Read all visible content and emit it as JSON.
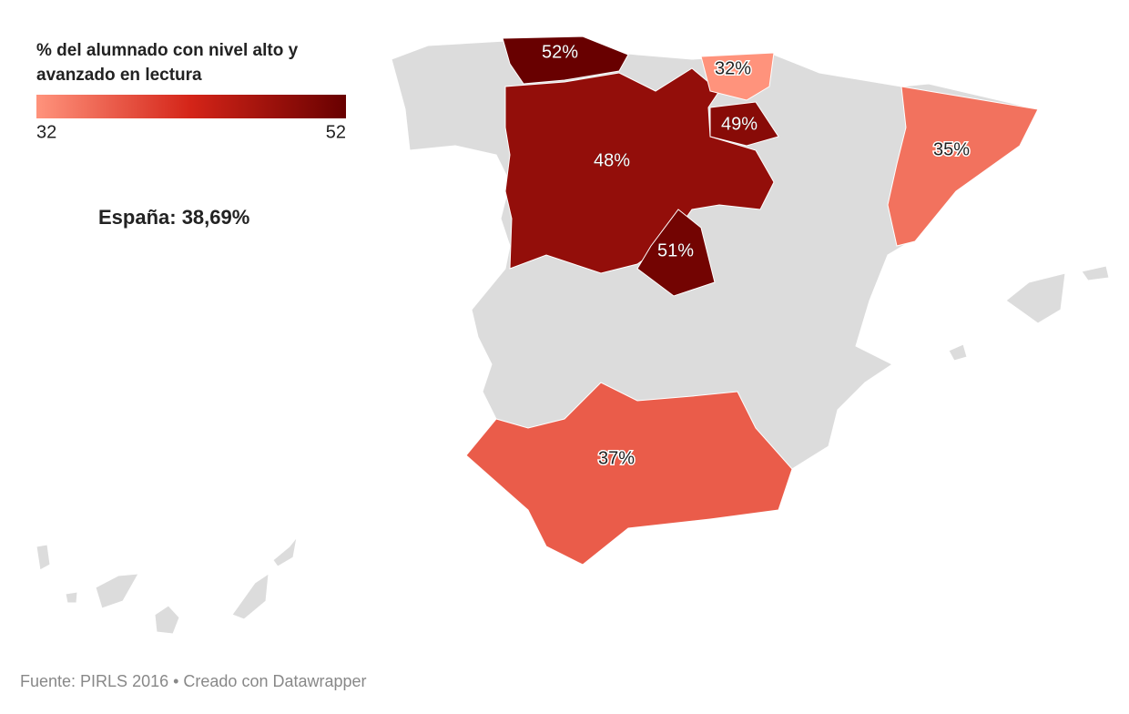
{
  "chart_data": {
    "type": "choropleth",
    "title": "% del alumnado con nivel alto y avanzado en lectura",
    "values": [
      52,
      32,
      49,
      48,
      51,
      35,
      37
    ],
    "value_labels": [
      "52%",
      "32%",
      "49%",
      "48%",
      "51%",
      "35%",
      "37%"
    ],
    "legend": {
      "domain": [
        32,
        52
      ],
      "colors": [
        "#ff937c",
        "#d42418",
        "#680000"
      ]
    },
    "annotation": "España: 38,69%",
    "source": "Fuente: PIRLS 2016 • Creado con Datawrapper"
  }
}
